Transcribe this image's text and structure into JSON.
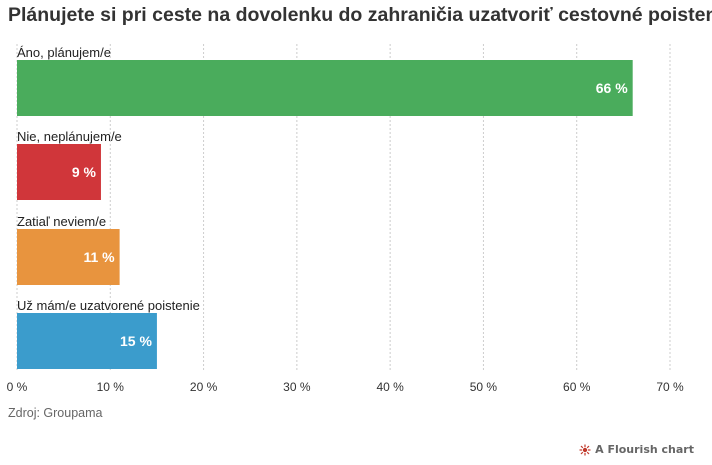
{
  "title": "Plánujete si pri ceste na dovolenku do zahraničia uzatvoriť cestovné poistenie?",
  "source": "Zdroj: Groupama",
  "credit": "A Flourish chart",
  "chart_data": {
    "type": "bar",
    "orientation": "horizontal",
    "categories": [
      "Áno, plánujem/e",
      "Nie, neplánujem/e",
      "Zatiaľ neviem/e",
      "Už mám/e uzatvorené poistenie"
    ],
    "values": [
      66,
      9,
      11,
      15
    ],
    "value_labels": [
      "66 %",
      "9 %",
      "11 %",
      "15 %"
    ],
    "colors": [
      "#4aac5c",
      "#d0363a",
      "#e8943e",
      "#3b9ccc"
    ],
    "xlim": [
      0,
      70
    ],
    "xticks": [
      0,
      10,
      20,
      30,
      40,
      50,
      60,
      70
    ],
    "xtick_labels": [
      "0 %",
      "10 %",
      "20 %",
      "30 %",
      "40 %",
      "50 %",
      "60 %",
      "70 %"
    ],
    "grid": true,
    "xlabel": "",
    "ylabel": ""
  }
}
